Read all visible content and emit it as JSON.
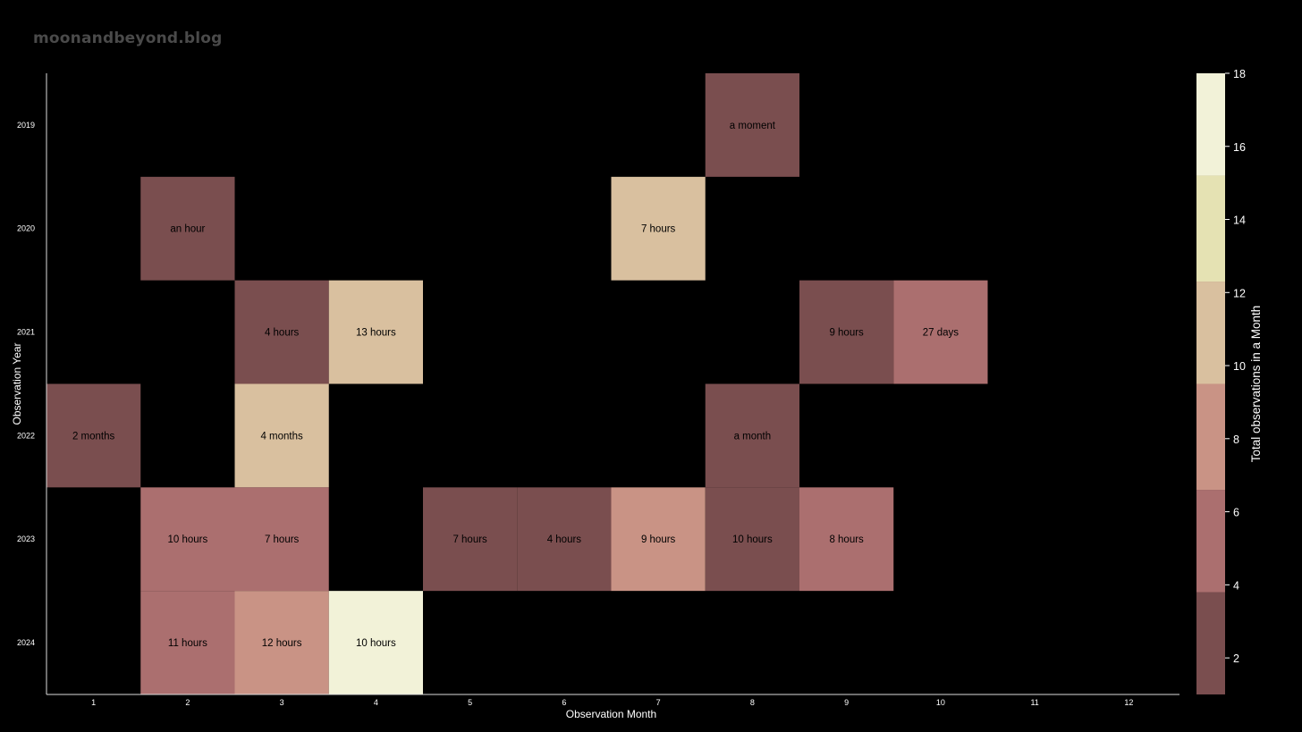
{
  "watermark": "moonandbeyond.blog",
  "chart_data": {
    "type": "heatmap",
    "xlabel": "Observation Month",
    "ylabel": "Observation Year",
    "x_categories": [
      "1",
      "2",
      "3",
      "4",
      "5",
      "6",
      "7",
      "8",
      "9",
      "10",
      "11",
      "12"
    ],
    "y_categories": [
      "2019",
      "2020",
      "2021",
      "2022",
      "2023",
      "2024"
    ],
    "colorbar": {
      "label": "Total observations in a Month",
      "range": [
        1,
        18
      ],
      "ticks": [
        2,
        4,
        6,
        8,
        10,
        12,
        14,
        16,
        18
      ],
      "bins": [
        {
          "from": 1,
          "to": 3.8,
          "color": "#7a4e4f"
        },
        {
          "from": 3.8,
          "to": 6.6,
          "color": "#ab6f6f"
        },
        {
          "from": 6.6,
          "to": 9.5,
          "color": "#c99385"
        },
        {
          "from": 9.5,
          "to": 12.3,
          "color": "#d9c09f"
        },
        {
          "from": 12.3,
          "to": 15.2,
          "color": "#e5e2b3"
        },
        {
          "from": 15.2,
          "to": 18,
          "color": "#f2f2d8"
        }
      ]
    },
    "cells": [
      {
        "year": "2019",
        "month": "8",
        "value": 2,
        "label": "a moment"
      },
      {
        "year": "2020",
        "month": "2",
        "value": 2,
        "label": "an hour"
      },
      {
        "year": "2020",
        "month": "7",
        "value": 11,
        "label": "7 hours"
      },
      {
        "year": "2021",
        "month": "3",
        "value": 2,
        "label": "4 hours"
      },
      {
        "year": "2021",
        "month": "4",
        "value": 11,
        "label": "13 hours"
      },
      {
        "year": "2021",
        "month": "9",
        "value": 2,
        "label": "9 hours"
      },
      {
        "year": "2021",
        "month": "10",
        "value": 5,
        "label": "27 days"
      },
      {
        "year": "2022",
        "month": "1",
        "value": 2,
        "label": "2 months"
      },
      {
        "year": "2022",
        "month": "3",
        "value": 11,
        "label": "4 months"
      },
      {
        "year": "2022",
        "month": "8",
        "value": 2,
        "label": "a month"
      },
      {
        "year": "2023",
        "month": "2",
        "value": 5,
        "label": "10 hours"
      },
      {
        "year": "2023",
        "month": "3",
        "value": 5,
        "label": "7 hours"
      },
      {
        "year": "2023",
        "month": "5",
        "value": 2,
        "label": "7 hours"
      },
      {
        "year": "2023",
        "month": "6",
        "value": 2,
        "label": "4 hours"
      },
      {
        "year": "2023",
        "month": "7",
        "value": 8,
        "label": "9 hours"
      },
      {
        "year": "2023",
        "month": "8",
        "value": 2,
        "label": "10 hours"
      },
      {
        "year": "2023",
        "month": "9",
        "value": 5,
        "label": "8 hours"
      },
      {
        "year": "2024",
        "month": "2",
        "value": 5,
        "label": "11 hours"
      },
      {
        "year": "2024",
        "month": "3",
        "value": 8,
        "label": "12 hours"
      },
      {
        "year": "2024",
        "month": "4",
        "value": 17,
        "label": "10 hours"
      }
    ]
  }
}
